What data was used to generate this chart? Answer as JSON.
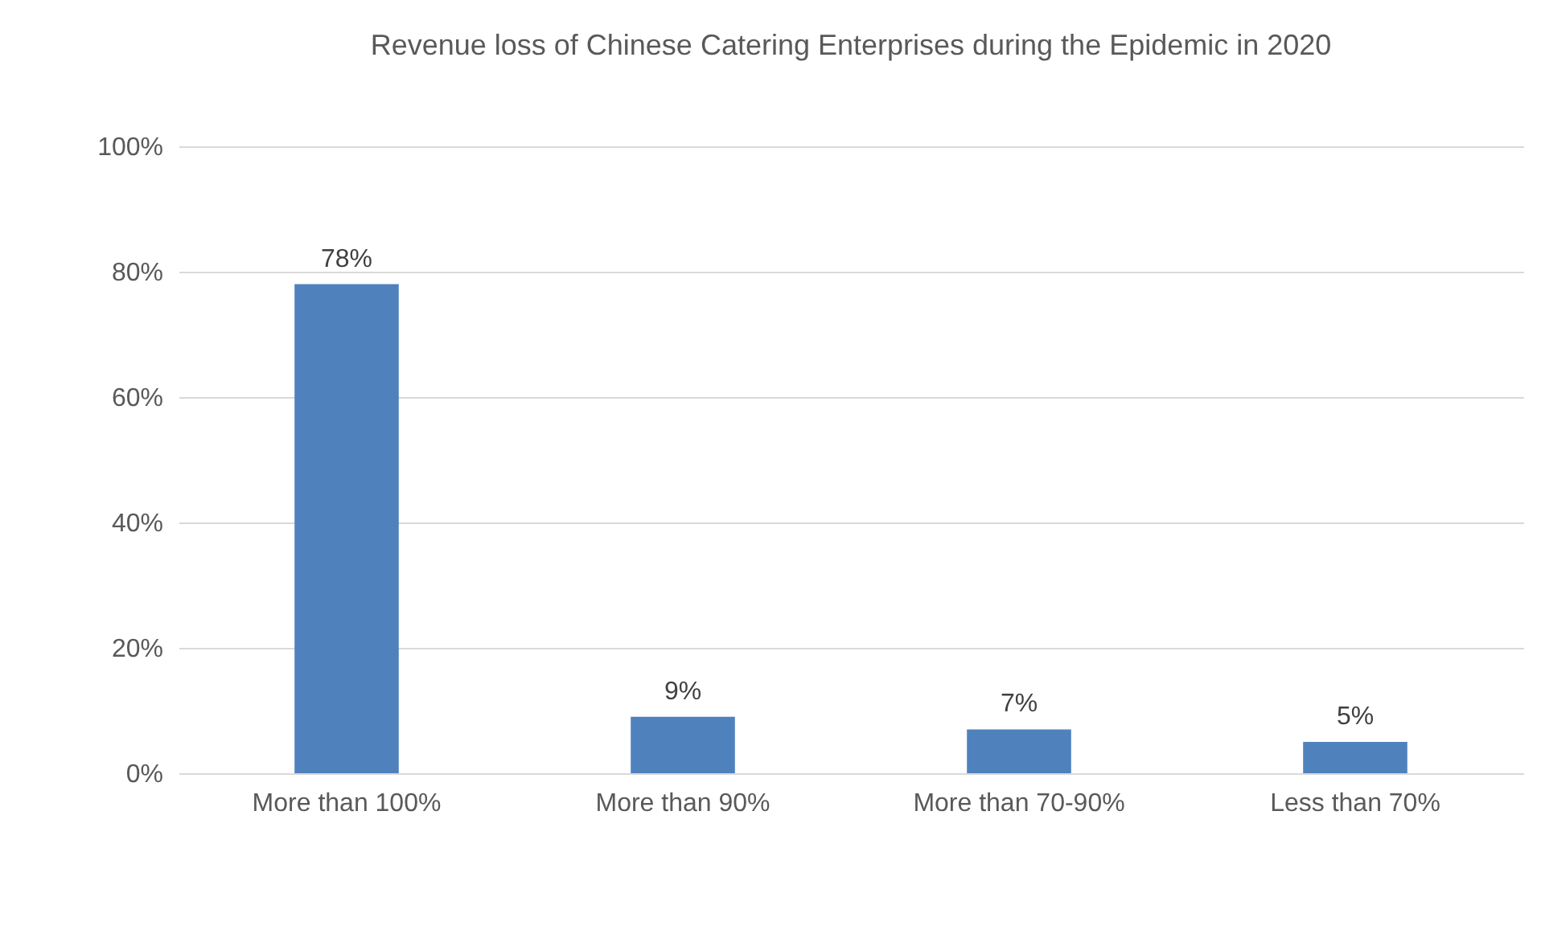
{
  "chart_data": {
    "type": "bar",
    "title": "Revenue loss of Chinese Catering Enterprises during the Epidemic in 2020",
    "categories": [
      "More than 100%",
      "More than 90%",
      "More than 70-90%",
      "Less than 70%"
    ],
    "values": [
      78,
      9,
      7,
      5
    ],
    "value_labels": [
      "78%",
      "9%",
      "7%",
      "5%"
    ],
    "color": "#4f81bd",
    "ylim": [
      0,
      100
    ],
    "yticks": [
      {
        "value": 0,
        "label": "0%"
      },
      {
        "value": 20,
        "label": "20%"
      },
      {
        "value": 40,
        "label": "40%"
      },
      {
        "value": 60,
        "label": "60%"
      },
      {
        "value": 80,
        "label": "80%"
      },
      {
        "value": 100,
        "label": "100%"
      }
    ],
    "grid": "y"
  }
}
